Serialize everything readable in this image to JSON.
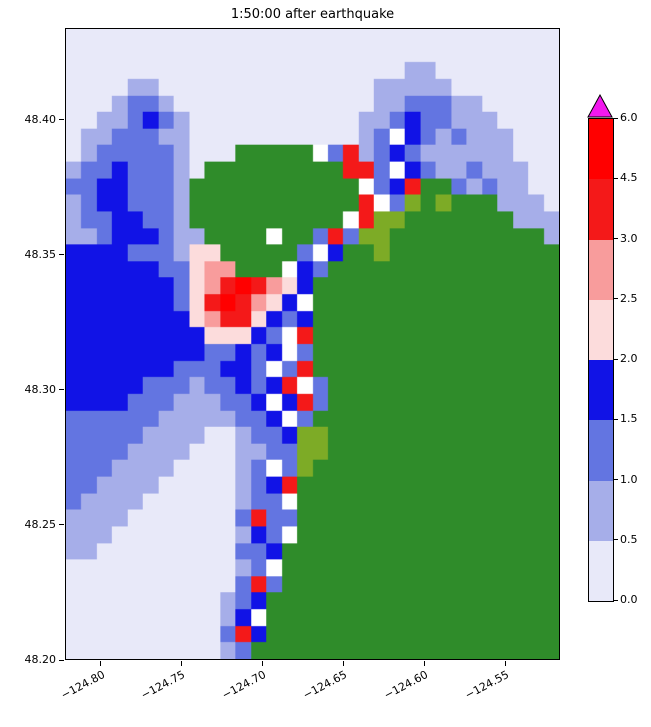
{
  "figure": {
    "title": "1:50:00 after earthquake",
    "background_color": "#ffffff"
  },
  "chart_data": {
    "type": "heatmap",
    "title": "1:50:00 after earthquake",
    "subtitle": "",
    "xlabel": "",
    "ylabel": "",
    "grid": false,
    "legend_position": "right-colorbar",
    "xlim": [
      -124.822,
      -124.516
    ],
    "ylim": [
      48.2,
      48.434
    ],
    "x_ticks": [
      {
        "value": -124.8,
        "label": "−124.80"
      },
      {
        "value": -124.75,
        "label": "−124.75"
      },
      {
        "value": -124.7,
        "label": "−124.70"
      },
      {
        "value": -124.65,
        "label": "−124.65"
      },
      {
        "value": -124.6,
        "label": "−124.60"
      },
      {
        "value": -124.55,
        "label": "−124.55"
      }
    ],
    "y_ticks": [
      {
        "value": 48.4,
        "label": "48.40"
      },
      {
        "value": 48.35,
        "label": "48.35"
      },
      {
        "value": 48.3,
        "label": "48.30"
      },
      {
        "value": 48.25,
        "label": "48.25"
      },
      {
        "value": 48.2,
        "label": "48.20"
      }
    ],
    "colorbar": {
      "orientation": "vertical",
      "levels": [
        0.0,
        0.5,
        1.0,
        1.5,
        2.0,
        2.5,
        3.0,
        4.5,
        6.0
      ],
      "tick_labels": [
        "0.0",
        "0.5",
        "1.0",
        "1.5",
        "2.0",
        "2.5",
        "3.0",
        "4.5",
        "6.0"
      ],
      "segment_colors": [
        "#e8e9f9",
        "#a6aee9",
        "#6375e1",
        "#1113e6",
        "#fcdcdc",
        "#f89c9c",
        "#f41919",
        "#ff0000"
      ],
      "over_color": "#f218ee"
    },
    "palette": {
      ".": "#e8e9f9",
      "1": "#a6aee9",
      "2": "#6375e1",
      "3": "#1113e6",
      "4": "#fcdcdc",
      "5": "#f89c9c",
      "6": "#f41919",
      "7": "#ff0000",
      "W": "#ffffff",
      "G": "#2f8c2a",
      "O": "#7dab26"
    },
    "cell_legend": {
      ".": "0.0-0.5",
      "1": "0.5-1.0",
      "2": "1.0-1.5",
      "3": "1.5-2.0",
      "4": "2.0-2.5",
      "5": "2.5-3.0",
      "6": "3.0-4.5",
      "7": "4.5-6.0",
      "W": "shoreline gap",
      "G": "land",
      "O": "low land"
    },
    "grid_rows": [
      "................................",
      "................................",
      "......................11........",
      "....11..............11111.......",
      "...1221.............1122211.....",
      "..112321...........112322111....",
      ".1122211...........12W3212111...",
      ".1222221...GGGGGW261232111111...",
      "12232221.GGGGGGGGG662W32112111..",
      "22332221GGGGGGGGGGGW236GG21211..",
      "12332221GGGGGGGGGGG6W2OGOGGG111.",
      "12233221GGGGGGGGGGW6OOGGGGGGG111",
      "112333211GGGGWGG262OOGGGGGGGGGG1",
      "3333222144GGGGG2W3GGOGGGGGGGGGGG",
      "33333322455GGGW32GGGGGGGGGGGGGGG",
      "3333333245676543GGGGGGGGGGGGGGGG",
      "333333324676543WGGGGGGGGGGGGGGGG",
      "3333333345664323GGGGGGGGGGGGGGGG",
      "33333333344432W6GGGGGGGGGGGGGGGG",
      "33333333322323W2GGGGGGGGGGGGGGGG",
      "3333333222332W26GGGGGGGGGGGGGGGG",
      "333332221223236W2GGGGGGGGGGGGGGG",
      "3333222111223W362GGGGGGGGGGGGGGG",
      "22222211111223W2GGGGGGGGGGGGGGGG",
      "222221111..1223OOGGGGGGGGGGGGGGG",
      "22221111...1122OOGGGGGGGGGGGGGGG",
      "2221111....12W2OGGGGGGGGGGGGGGGG",
      "221111.....1236GGGGGGGGGGGGGGGGG",
      "21111......122WGGGGGGGGGGGGGGGGG",
      "1111.......2622GGGGGGGGGGGGGGGGG",
      "111........132WGGGGGGGGGGGGGGGGG",
      "11.........223GGGGGGGGGGGGGGGGGG",
      "...........12WGGGGGGGGGGGGGGGGGG",
      "...........262GGGGGGGGGGGGGGGGGG",
      "..........123GGGGGGGGGGGGGGGGGGG",
      "..........13WGGGGGGGGGGGGGGGGGGG",
      "..........263GGGGGGGGGGGGGGGGGGG",
      "..........12GGGGGGGGGGGGGGGGGGGG"
    ]
  }
}
